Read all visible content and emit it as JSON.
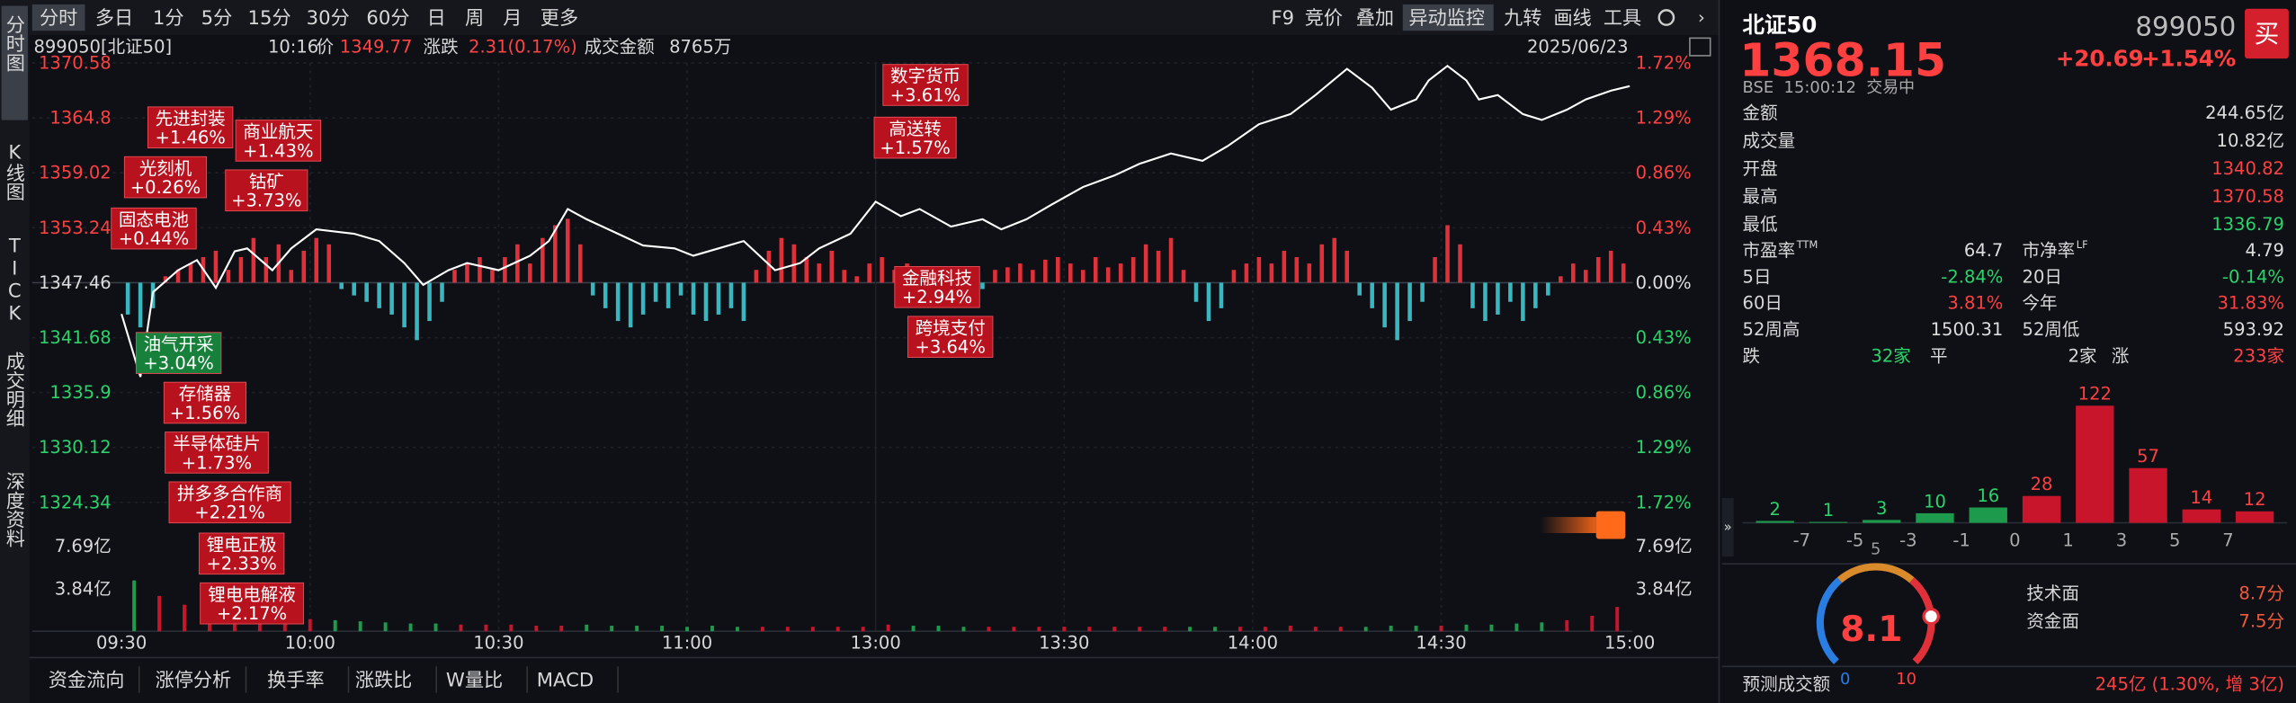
{
  "toolbar": {
    "periods": [
      "分时",
      "多日",
      "1分",
      "5分",
      "15分",
      "30分",
      "60分",
      "日",
      "周",
      "月",
      "更多"
    ],
    "tools": [
      "F9",
      "竞价",
      "叠加",
      "异动监控",
      "九转",
      "画线",
      "工具"
    ]
  },
  "side_tabs": [
    "分时图",
    "K线图",
    "TICK",
    "成交明细",
    "深度资料"
  ],
  "info_bar": {
    "code": "899050[北证50]",
    "time": "10:16",
    "price_label": "价",
    "price": "1349.77",
    "change_label": "涨跌",
    "change": "2.31(0.17%)",
    "amount_label": "成交金额",
    "amount": "8765万",
    "date": "2025/06/23"
  },
  "chart_data": {
    "type": "line",
    "color": "#ffffff",
    "grid": true,
    "x": [
      0,
      3,
      5,
      9,
      12,
      15,
      18,
      20,
      24,
      27,
      31,
      37,
      41,
      45,
      48,
      52,
      55,
      60,
      65,
      68,
      71,
      74,
      79,
      83,
      88,
      91,
      95,
      99,
      104,
      108,
      111,
      116,
      120,
      124,
      127,
      132,
      137,
      140,
      144,
      148,
      153,
      158,
      162,
      167,
      172,
      176,
      181,
      186,
      190,
      195,
      199,
      202,
      206,
      208,
      211,
      214,
      216,
      219,
      223,
      226,
      230,
      233,
      237,
      240
    ],
    "values": [
      1344.16,
      1337.55,
      1346.46,
      1348.77,
      1349.84,
      1346.92,
      1350.76,
      1351.07,
      1348.77,
      1351.07,
      1353.07,
      1352.61,
      1351.84,
      1349.53,
      1347.23,
      1348.77,
      1349.53,
      1348.77,
      1350.3,
      1351.84,
      1355.22,
      1354.14,
      1352.61,
      1351.38,
      1351.07,
      1350.3,
      1351.07,
      1351.84,
      1348.77,
      1349.53,
      1351.07,
      1352.61,
      1355.99,
      1354.45,
      1355.22,
      1353.37,
      1354.14,
      1353.07,
      1354.14,
      1355.68,
      1357.52,
      1358.75,
      1359.98,
      1361.06,
      1360.29,
      1361.82,
      1364.13,
      1365.2,
      1367.2,
      1369.97,
      1367.97,
      1365.66,
      1366.74,
      1368.74,
      1370.27,
      1368.74,
      1366.74,
      1367.2,
      1365.2,
      1364.59,
      1365.66,
      1366.74,
      1367.66,
      1368.15
    ],
    "xlim": [
      0,
      240
    ],
    "xticks": [
      {
        "value": 0,
        "label": "09:30"
      },
      {
        "value": 30,
        "label": "10:00"
      },
      {
        "value": 60,
        "label": "10:30"
      },
      {
        "value": 90,
        "label": "11:00"
      },
      {
        "value": 120,
        "label": "13:00"
      },
      {
        "value": 150,
        "label": "13:30"
      },
      {
        "value": 180,
        "label": "14:00"
      },
      {
        "value": 210,
        "label": "14:30"
      },
      {
        "value": 240,
        "label": "15:00"
      }
    ],
    "ylim": [
      1324.34,
      1370.58
    ],
    "yticks": [
      1324.34,
      1330.12,
      1335.9,
      1341.68,
      1347.46,
      1353.24,
      1359.02,
      1364.8,
      1370.58
    ],
    "y2lim": [
      -1.72,
      1.72
    ],
    "y2ticks": [
      {
        "value": -1.72,
        "label": "1.72%"
      },
      {
        "value": -1.29,
        "label": "1.29%"
      },
      {
        "value": -0.86,
        "label": "0.86%"
      },
      {
        "value": -0.43,
        "label": "0.43%"
      },
      {
        "value": 0,
        "label": "0.00%"
      },
      {
        "value": 0.43,
        "label": "0.43%"
      },
      {
        "value": 0.86,
        "label": "0.86%"
      },
      {
        "value": 1.29,
        "label": "1.29%"
      },
      {
        "value": 1.72,
        "label": "1.72%"
      }
    ],
    "momentum": {
      "type": "bar",
      "axis": "y2",
      "up_color": "#e0303a",
      "down_color": "#38b7c0",
      "x": [
        1,
        3,
        5,
        7,
        9,
        11,
        13,
        15,
        17,
        19,
        21,
        23,
        25,
        27,
        29,
        31,
        33,
        35,
        37,
        39,
        41,
        43,
        45,
        47,
        49,
        51,
        53,
        55,
        57,
        59,
        61,
        63,
        65,
        67,
        69,
        71,
        73,
        75,
        77,
        79,
        81,
        83,
        85,
        87,
        89,
        91,
        93,
        95,
        97,
        99,
        101,
        103,
        105,
        107,
        109,
        111,
        113,
        115,
        117,
        119,
        121,
        123,
        125,
        127,
        129,
        131,
        133,
        135,
        137,
        139,
        141,
        143,
        145,
        147,
        149,
        151,
        153,
        155,
        157,
        159,
        161,
        163,
        165,
        167,
        169,
        171,
        173,
        175,
        177,
        179,
        181,
        183,
        185,
        187,
        189,
        191,
        193,
        195,
        197,
        199,
        201,
        203,
        205,
        207,
        209,
        211,
        213,
        215,
        217,
        219,
        221,
        223,
        225,
        227,
        229,
        231,
        233,
        235,
        237,
        239
      ],
      "values": [
        -0.25,
        -0.35,
        -0.2,
        0.05,
        0.1,
        0.15,
        0.2,
        0.25,
        0.1,
        0.2,
        0.35,
        0.2,
        0.3,
        0.1,
        0.25,
        0.35,
        0.3,
        -0.05,
        -0.1,
        -0.15,
        -0.2,
        -0.25,
        -0.35,
        -0.45,
        -0.3,
        -0.15,
        0.1,
        0.15,
        0.2,
        0.1,
        0.2,
        0.3,
        0.15,
        0.35,
        0.45,
        0.5,
        0.3,
        -0.1,
        -0.2,
        -0.3,
        -0.35,
        -0.25,
        -0.15,
        -0.2,
        -0.1,
        -0.25,
        -0.3,
        -0.25,
        -0.2,
        -0.3,
        0.1,
        0.25,
        0.35,
        0.3,
        0.2,
        0.15,
        0.25,
        0.1,
        0.05,
        0.15,
        0.2,
        0.1,
        0.15,
        -0.05,
        -0.1,
        -0.08,
        0.05,
        -0.1,
        -0.05,
        0.1,
        0.12,
        0.15,
        0.1,
        0.18,
        0.2,
        0.15,
        0.1,
        0.2,
        0.12,
        0.15,
        0.2,
        0.3,
        0.25,
        0.35,
        0.1,
        -0.15,
        -0.3,
        -0.2,
        0.1,
        0.15,
        0.2,
        0.15,
        0.25,
        0.2,
        0.15,
        0.3,
        0.35,
        0.25,
        -0.1,
        -0.2,
        -0.35,
        -0.45,
        -0.3,
        -0.15,
        0.2,
        0.45,
        0.3,
        -0.2,
        -0.3,
        -0.25,
        -0.15,
        -0.3,
        -0.2,
        -0.1,
        0.05,
        0.15,
        0.1,
        0.2,
        0.25,
        0.15
      ]
    },
    "volume": {
      "type": "bar",
      "ylim": [
        0,
        7.69
      ],
      "yticks": [
        {
          "value": 3.84,
          "label": "3.84亿"
        },
        {
          "value": 7.69,
          "label": "7.69亿"
        }
      ],
      "x": [
        2,
        6,
        10,
        14,
        18,
        22,
        26,
        30,
        34,
        38,
        42,
        46,
        50,
        54,
        58,
        62,
        66,
        70,
        74,
        78,
        82,
        86,
        90,
        94,
        98,
        102,
        106,
        110,
        114,
        118,
        122,
        126,
        130,
        134,
        138,
        142,
        146,
        150,
        154,
        158,
        162,
        166,
        170,
        174,
        178,
        182,
        186,
        190,
        194,
        198,
        202,
        206,
        210,
        214,
        218,
        222,
        226,
        230,
        234,
        238
      ],
      "values": [
        4.6,
        3.2,
        2.4,
        2.0,
        1.6,
        1.4,
        1.2,
        1.1,
        1.0,
        0.9,
        0.8,
        0.7,
        0.7,
        0.6,
        0.6,
        0.6,
        0.5,
        0.5,
        0.6,
        0.5,
        0.5,
        0.5,
        0.4,
        0.5,
        0.4,
        0.4,
        0.4,
        0.4,
        0.4,
        0.4,
        0.6,
        0.5,
        0.5,
        0.4,
        0.4,
        0.4,
        0.4,
        0.4,
        0.4,
        0.4,
        0.4,
        0.4,
        0.4,
        0.4,
        0.4,
        0.4,
        0.5,
        0.4,
        0.4,
        0.4,
        0.5,
        0.5,
        0.5,
        0.6,
        0.6,
        0.7,
        0.8,
        1.0,
        1.4,
        2.2
      ]
    }
  },
  "tags": [
    {
      "name": "先进封装",
      "change": "+1.46%",
      "color": "#b8121f"
    },
    {
      "name": "商业航天",
      "change": "+1.43%",
      "color": "#b8121f"
    },
    {
      "name": "光刻机",
      "change": "+0.26%",
      "color": "#b8121f"
    },
    {
      "name": "钴矿",
      "change": "+3.73%",
      "color": "#b8121f"
    },
    {
      "name": "固态电池",
      "change": "+0.44%",
      "color": "#b8121f"
    },
    {
      "name": "油气开采",
      "change": "+3.04%",
      "color": "#17803a"
    },
    {
      "name": "存储器",
      "change": "+1.56%",
      "color": "#b8121f"
    },
    {
      "name": "半导体硅片",
      "change": "+1.73%",
      "color": "#b8121f"
    },
    {
      "name": "拼多多合作商",
      "change": "+2.21%",
      "color": "#b8121f"
    },
    {
      "name": "锂电正极",
      "change": "+2.33%",
      "color": "#b8121f"
    },
    {
      "name": "锂电电解液",
      "change": "+2.17%",
      "color": "#b8121f"
    },
    {
      "name": "数字货币",
      "change": "+3.61%",
      "color": "#b8121f"
    },
    {
      "name": "高送转",
      "change": "+1.57%",
      "color": "#b8121f"
    },
    {
      "name": "金融科技",
      "change": "+2.94%",
      "color": "#b8121f"
    },
    {
      "name": "跨境支付",
      "change": "+3.64%",
      "color": "#b8121f"
    }
  ],
  "bottom_tabs": [
    "资金流向",
    "涨停分析",
    "换手率",
    "涨跌比",
    "W量比",
    "MACD"
  ],
  "quote": {
    "name": "北证50",
    "code": "899050",
    "price": "1368.15",
    "change": "+20.69",
    "change_pct": "+1.54%",
    "buy": "买",
    "status": "BSE  15:00:12  交易中",
    "rows": [
      {
        "label": "金额",
        "value": "244.65亿"
      },
      {
        "label": "成交量",
        "value": "10.82亿"
      },
      {
        "label": "开盘",
        "value": "1340.82"
      },
      {
        "label": "最高",
        "value": "1370.58"
      },
      {
        "label": "最低",
        "value": "1336.79"
      }
    ],
    "pairs": [
      [
        {
          "label": "市盈率",
          "sup": "TTM",
          "value": "64.7"
        },
        {
          "label": "市净率",
          "sup": "LF",
          "value": "4.79"
        }
      ],
      [
        {
          "label": "5日",
          "value": "-2.84%"
        },
        {
          "label": "20日",
          "value": "-0.14%"
        }
      ],
      [
        {
          "label": "60日",
          "value": "3.81%"
        },
        {
          "label": "今年",
          "value": "31.83%"
        }
      ],
      [
        {
          "label": "52周高",
          "value": "1500.31"
        },
        {
          "label": "52周低",
          "value": "593.92"
        }
      ]
    ],
    "breadth": {
      "down_label": "跌",
      "down": "32家",
      "flat_label": "平",
      "flat": "2家",
      "up_label": "涨",
      "up": "233家"
    }
  },
  "distribution": {
    "type": "bar",
    "bins": [
      null,
      -7,
      -5,
      -3,
      -1,
      0,
      1,
      3,
      5,
      7,
      null
    ],
    "values": [
      2,
      1,
      3,
      10,
      16,
      28,
      122,
      57,
      14,
      12
    ],
    "colors": [
      "#1e9a4c",
      "#1e9a4c",
      "#1e9a4c",
      "#1e9a4c",
      "#1e9a4c",
      "#c8152b",
      "#c8152b",
      "#c8152b",
      "#c8152b",
      "#c8152b"
    ]
  },
  "gauge": {
    "type": "gauge",
    "value": 8.1,
    "lim": [
      0,
      10
    ],
    "ticks": [
      0,
      5,
      10
    ]
  },
  "scores": [
    {
      "label": "技术面",
      "value": "8.7分"
    },
    {
      "label": "资金面",
      "value": "7.5分"
    }
  ],
  "forecast": {
    "label": "预测成交额",
    "value": "245亿 (1.30%, 增 3亿)"
  }
}
